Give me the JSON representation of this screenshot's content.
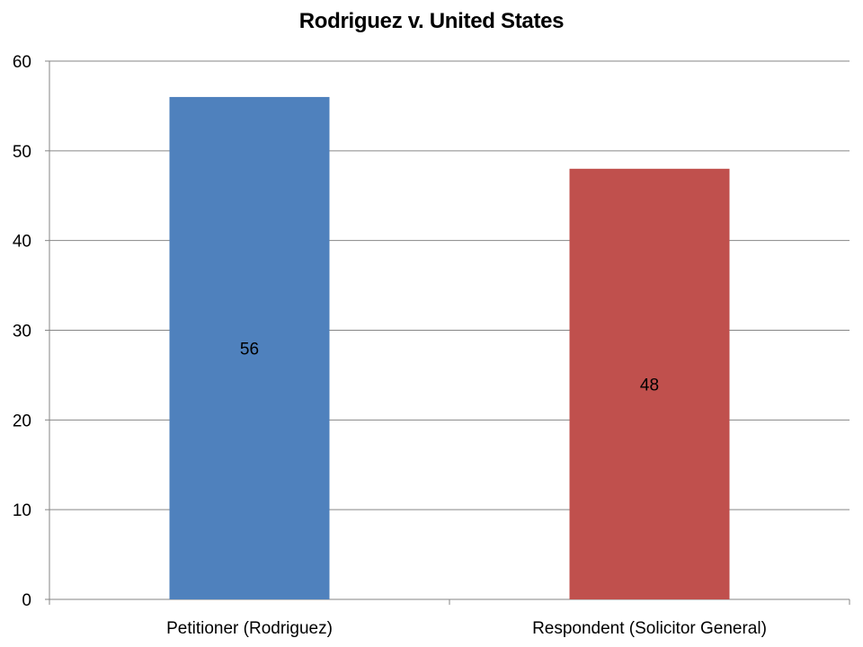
{
  "chart_data": {
    "type": "bar",
    "title": "Rodriguez v. United States",
    "categories": [
      "Petitioner (Rodriguez)",
      "Respondent (Solicitor General)"
    ],
    "values": [
      56,
      48
    ],
    "data_labels": [
      "56",
      "48"
    ],
    "colors": [
      "#4F81BD",
      "#C0504D"
    ],
    "ylim": [
      0,
      60
    ],
    "yticks": [
      0,
      10,
      20,
      30,
      40,
      50,
      60
    ],
    "ytick_labels": [
      "0",
      "10",
      "20",
      "30",
      "40",
      "50",
      "60"
    ],
    "grid": true,
    "legend": "none",
    "xlabel": "",
    "ylabel": ""
  }
}
